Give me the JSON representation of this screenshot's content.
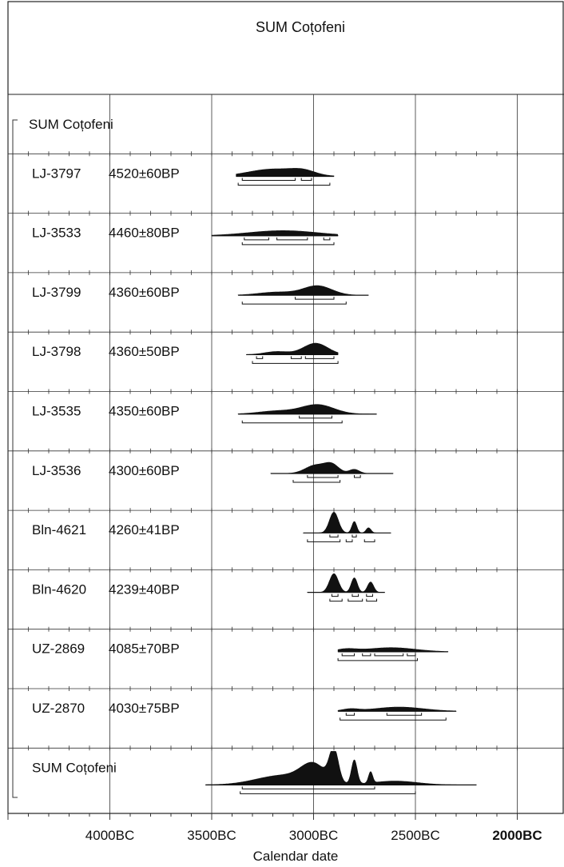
{
  "chart_data": {
    "type": "area",
    "title": "SUM Coțofeni",
    "xlabel": "Calendar date",
    "ylabel": "",
    "x_unit": "calendar year BC (larger = earlier)",
    "xlim": [
      4500,
      1950
    ],
    "grid": true,
    "x_ticks": [
      "4000BC",
      "3500BC",
      "3000BC",
      "2500BC",
      "2000BC"
    ],
    "x_tick_values": [
      4000,
      3500,
      3000,
      2500,
      2000
    ],
    "group_label": "SUM Coțofeni",
    "series": [
      {
        "name": "LJ-3797",
        "date": "4520±60BP",
        "range_bc": [
          3380,
          2900
        ],
        "peaks": [
          {
            "center": 3200,
            "spread": 120,
            "height": 0.35
          },
          {
            "center": 3050,
            "spread": 60,
            "height": 0.2
          }
        ],
        "brackets_68": [
          [
            3350,
            3090
          ],
          [
            3060,
            3010
          ]
        ],
        "brackets_95": [
          [
            3370,
            2920
          ]
        ]
      },
      {
        "name": "LJ-3533",
        "date": "4460±80BP",
        "range_bc": [
          3500,
          2880
        ],
        "peaks": [
          {
            "center": 3150,
            "spread": 170,
            "height": 0.25
          }
        ],
        "brackets_68": [
          [
            3340,
            3220
          ],
          [
            3180,
            3030
          ],
          [
            2950,
            2920
          ]
        ],
        "brackets_95": [
          [
            3350,
            2900
          ]
        ]
      },
      {
        "name": "LJ-3799",
        "date": "4360±60BP",
        "range_bc": [
          3370,
          2730
        ],
        "peaks": [
          {
            "center": 2980,
            "spread": 70,
            "height": 0.45
          },
          {
            "center": 3180,
            "spread": 90,
            "height": 0.15
          }
        ],
        "brackets_68": [
          [
            3090,
            2900
          ]
        ],
        "brackets_95": [
          [
            3350,
            2840
          ]
        ]
      },
      {
        "name": "LJ-3798",
        "date": "4360±50BP",
        "range_bc": [
          3330,
          2880
        ],
        "peaks": [
          {
            "center": 2990,
            "spread": 60,
            "height": 0.55
          },
          {
            "center": 3180,
            "spread": 60,
            "height": 0.15
          }
        ],
        "brackets_68": [
          [
            3280,
            3250
          ],
          [
            3110,
            3060
          ],
          [
            3040,
            2900
          ]
        ],
        "brackets_95": [
          [
            3300,
            2880
          ]
        ]
      },
      {
        "name": "LJ-3535",
        "date": "4350±60BP",
        "range_bc": [
          3370,
          2690
        ],
        "peaks": [
          {
            "center": 2980,
            "spread": 80,
            "height": 0.45
          },
          {
            "center": 3180,
            "spread": 90,
            "height": 0.15
          }
        ],
        "brackets_68": [
          [
            3070,
            2910
          ]
        ],
        "brackets_95": [
          [
            3350,
            2860
          ]
        ]
      },
      {
        "name": "LJ-3536",
        "date": "4300±60BP",
        "range_bc": [
          3210,
          2610
        ],
        "peaks": [
          {
            "center": 2990,
            "spread": 50,
            "height": 0.4
          },
          {
            "center": 2910,
            "spread": 35,
            "height": 0.4
          },
          {
            "center": 2800,
            "spread": 25,
            "height": 0.2
          }
        ],
        "brackets_68": [
          [
            3030,
            2880
          ],
          [
            2800,
            2770
          ]
        ],
        "brackets_95": [
          [
            3100,
            2870
          ]
        ]
      },
      {
        "name": "Bln-4621",
        "date": "4260±41BP",
        "range_bc": [
          3050,
          2620
        ],
        "peaks": [
          {
            "center": 2900,
            "spread": 22,
            "height": 1.0
          },
          {
            "center": 2800,
            "spread": 12,
            "height": 0.55
          },
          {
            "center": 2730,
            "spread": 12,
            "height": 0.25
          }
        ],
        "brackets_68": [
          [
            2920,
            2880
          ],
          [
            2810,
            2790
          ]
        ],
        "brackets_95": [
          [
            3030,
            2870
          ],
          [
            2840,
            2810
          ],
          [
            2750,
            2700
          ]
        ]
      },
      {
        "name": "Bln-4620",
        "date": "4239±40BP",
        "range_bc": [
          3030,
          2650
        ],
        "peaks": [
          {
            "center": 2900,
            "spread": 22,
            "height": 0.9
          },
          {
            "center": 2800,
            "spread": 15,
            "height": 0.7
          },
          {
            "center": 2720,
            "spread": 15,
            "height": 0.5
          }
        ],
        "brackets_68": [
          [
            2910,
            2880
          ],
          [
            2810,
            2780
          ],
          [
            2740,
            2710
          ]
        ],
        "brackets_95": [
          [
            2920,
            2860
          ],
          [
            2830,
            2760
          ],
          [
            2740,
            2690
          ]
        ]
      },
      {
        "name": "UZ-2869",
        "date": "4085±70BP",
        "range_bc": [
          2880,
          2340
        ],
        "peaks": [
          {
            "center": 2620,
            "spread": 120,
            "height": 0.2
          },
          {
            "center": 2840,
            "spread": 50,
            "height": 0.12
          }
        ],
        "brackets_68": [
          [
            2860,
            2800
          ],
          [
            2760,
            2720
          ],
          [
            2700,
            2560
          ],
          [
            2540,
            2500
          ]
        ],
        "brackets_95": [
          [
            2880,
            2490
          ]
        ]
      },
      {
        "name": "UZ-2870",
        "date": "4030±75BP",
        "range_bc": [
          2880,
          2300
        ],
        "peaks": [
          {
            "center": 2580,
            "spread": 120,
            "height": 0.2
          },
          {
            "center": 2820,
            "spread": 40,
            "height": 0.1
          }
        ],
        "brackets_68": [
          [
            2840,
            2800
          ],
          [
            2640,
            2470
          ]
        ],
        "brackets_95": [
          [
            2870,
            2350
          ]
        ]
      },
      {
        "name": "SUM Coțofeni",
        "date": "",
        "range_bc": [
          3530,
          2200
        ],
        "sum": true,
        "peaks": [
          {
            "center": 2900,
            "spread": 22,
            "height": 1.0
          },
          {
            "center": 3000,
            "spread": 60,
            "height": 0.55
          },
          {
            "center": 2800,
            "spread": 14,
            "height": 0.75
          },
          {
            "center": 2720,
            "spread": 10,
            "height": 0.35
          },
          {
            "center": 3150,
            "spread": 130,
            "height": 0.3
          },
          {
            "center": 2600,
            "spread": 110,
            "height": 0.12
          }
        ],
        "brackets_68": [
          [
            3350,
            2700
          ]
        ],
        "brackets_95": [
          [
            3360,
            2500
          ]
        ]
      }
    ]
  }
}
